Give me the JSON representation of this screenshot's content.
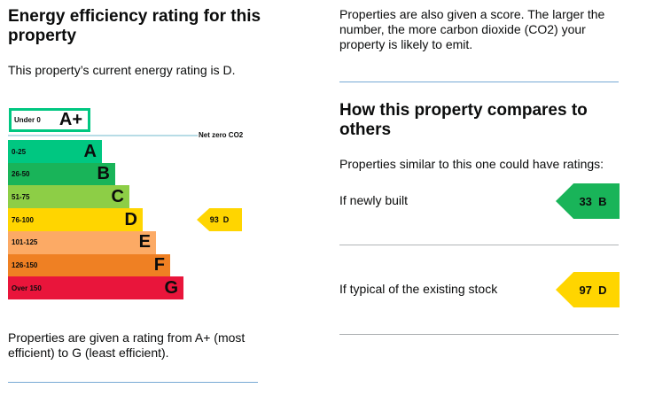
{
  "left": {
    "title": "Energy efficiency rating for this property",
    "current": "This property’s current energy rating is D.",
    "footer": "Properties are given a rating from A+ (most efficient) to G (least efficient)."
  },
  "chart": {
    "aplus": {
      "range": "Under 0",
      "letter": "A+",
      "color": "#00c781"
    },
    "net_zero": "Net zero CO2",
    "bands": [
      {
        "range": "0-25",
        "letter": "A",
        "color": "#00c781"
      },
      {
        "range": "26-50",
        "letter": "B",
        "color": "#19b459"
      },
      {
        "range": "51-75",
        "letter": "C",
        "color": "#8dce46"
      },
      {
        "range": "76-100",
        "letter": "D",
        "color": "#ffd500"
      },
      {
        "range": "101-125",
        "letter": "E",
        "color": "#fcaa65"
      },
      {
        "range": "126-150",
        "letter": "F",
        "color": "#ef8023"
      },
      {
        "range": "Over 150",
        "letter": "G",
        "color": "#e9153b"
      }
    ],
    "current": {
      "score": "93",
      "letter": "D",
      "color": "#ffd500"
    }
  },
  "right": {
    "intro": "Properties are also given a score. The larger the number, the more carbon dioxide (CO2) your property is likely to emit.",
    "compare_title": "How this property compares to others",
    "similar": "Properties similar to this one could have ratings:",
    "rows": [
      {
        "label": "If newly built",
        "score": "33",
        "letter": "B",
        "color": "#19b459"
      },
      {
        "label": "If typical of the existing stock",
        "score": "97",
        "letter": "D",
        "color": "#ffd500"
      }
    ]
  }
}
